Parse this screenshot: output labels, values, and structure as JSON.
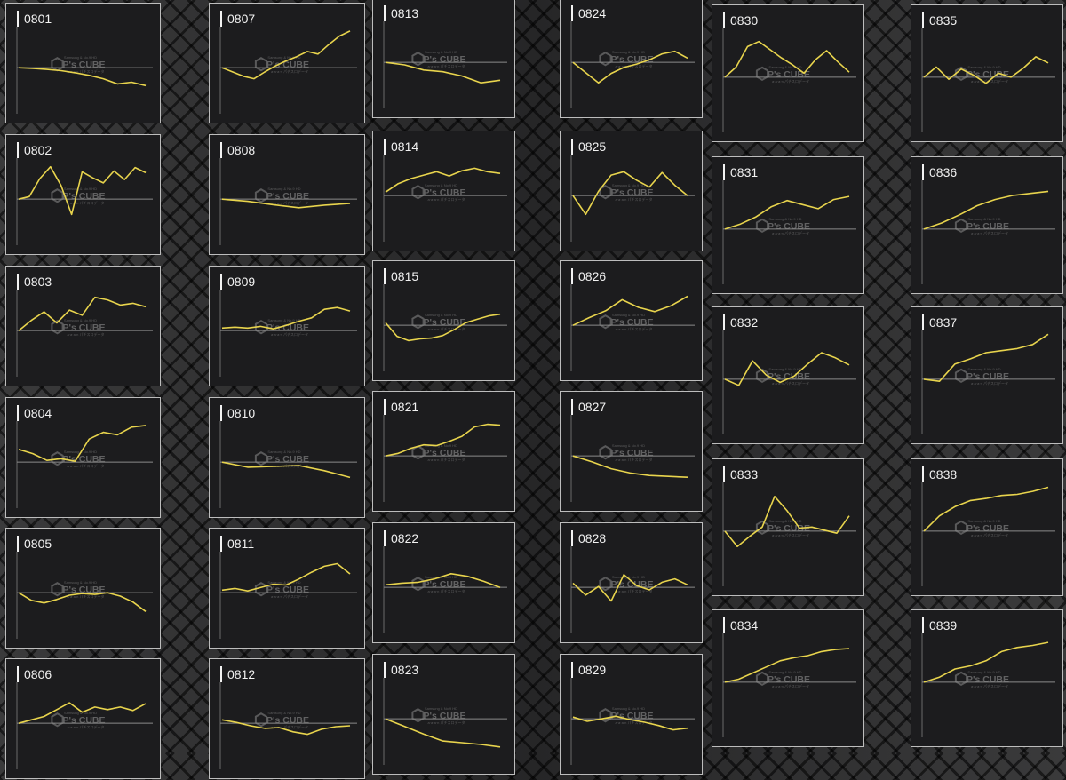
{
  "watermark": {
    "brand": "P's CUBE",
    "tag_top": "Samsung & No.9 HD",
    "tag_bottom": "a·a·a·n パチスロデータ"
  },
  "colors": {
    "line": "#e8d44d",
    "baseline": "#8a8a8a",
    "axis": "#6a6a6a",
    "panel_bg": "#1c1c1e",
    "panel_border": "#bdbdbd",
    "label": "#f2f2f2"
  },
  "chart_data": [
    {
      "type": "line",
      "id": "0801",
      "y": [
        0,
        -0.08,
        -0.2,
        -0.35,
        -0.6,
        -0.9,
        -1.3,
        -1.9,
        -1.7,
        -2.1
      ],
      "ylim": [
        -5,
        5
      ]
    },
    {
      "type": "line",
      "id": "0802",
      "y": [
        0,
        0.3,
        2.4,
        3.8,
        1.6,
        -1.8,
        3.2,
        2.5,
        1.9,
        3.3,
        2.3,
        3.7,
        3.1
      ],
      "ylim": [
        -5,
        5
      ]
    },
    {
      "type": "line",
      "id": "0803",
      "y": [
        0,
        1.2,
        2.2,
        0.9,
        2.4,
        1.8,
        3.9,
        3.6,
        3.0,
        3.2,
        2.8
      ],
      "ylim": [
        -5,
        5
      ]
    },
    {
      "type": "line",
      "id": "0804",
      "y": [
        1.5,
        1.0,
        0.2,
        0.4,
        0.1,
        2.7,
        3.5,
        3.2,
        4.1,
        4.3
      ],
      "ylim": [
        -5,
        5
      ]
    },
    {
      "type": "line",
      "id": "0805",
      "y": [
        0,
        -0.9,
        -1.2,
        -0.8,
        -0.3,
        -0.1,
        -0.2,
        0,
        -0.4,
        -1.1,
        -2.2
      ],
      "ylim": [
        -5,
        5
      ]
    },
    {
      "type": "line",
      "id": "0806",
      "y": [
        0,
        0.4,
        0.8,
        1.6,
        2.4,
        1.3,
        1.9,
        1.6,
        1.9,
        1.5,
        2.3
      ],
      "ylim": [
        -5,
        5
      ]
    },
    {
      "type": "line",
      "id": "0807",
      "y": [
        0,
        -0.5,
        -1.0,
        -1.3,
        -0.5,
        0.2,
        0.8,
        1.3,
        1.9,
        1.6,
        2.7,
        3.7,
        4.3
      ],
      "ylim": [
        -5,
        5
      ]
    },
    {
      "type": "line",
      "id": "0808",
      "y": [
        0,
        -0.25,
        -0.65,
        -1.0,
        -0.7,
        -0.5
      ],
      "ylim": [
        -5,
        5
      ]
    },
    {
      "type": "line",
      "id": "0809",
      "y": [
        0.3,
        0.4,
        0.3,
        0.5,
        0.2,
        0.6,
        1.1,
        1.5,
        2.5,
        2.7,
        2.3
      ],
      "ylim": [
        -5,
        5
      ]
    },
    {
      "type": "line",
      "id": "0810",
      "y": [
        0,
        -0.6,
        -0.5,
        -0.4,
        -1.0,
        -1.8
      ],
      "ylim": [
        -5,
        5
      ]
    },
    {
      "type": "line",
      "id": "0811",
      "y": [
        0.3,
        0.5,
        0.2,
        0.6,
        1.0,
        0.9,
        1.6,
        2.4,
        3.1,
        3.4,
        2.2
      ],
      "ylim": [
        -5,
        5
      ]
    },
    {
      "type": "line",
      "id": "0812",
      "y": [
        0.4,
        0.1,
        -0.3,
        -0.6,
        -0.5,
        -1.0,
        -1.3,
        -0.7,
        -0.4,
        -0.3
      ],
      "ylim": [
        -5,
        5
      ]
    },
    {
      "type": "line",
      "id": "0813",
      "y": [
        0,
        -0.3,
        -0.9,
        -1.1,
        -1.6,
        -2.4,
        -2.1
      ],
      "ylim": [
        -5,
        5
      ]
    },
    {
      "type": "line",
      "id": "0814",
      "y": [
        0.4,
        1.4,
        2.0,
        2.4,
        2.8,
        2.3,
        2.9,
        3.2,
        2.8,
        2.6
      ],
      "ylim": [
        -5,
        5
      ]
    },
    {
      "type": "line",
      "id": "0815",
      "y": [
        0.3,
        -1.3,
        -1.8,
        -1.6,
        -1.5,
        -1.2,
        -0.5,
        0.3,
        0.7,
        1.1,
        1.3
      ],
      "ylim": [
        -5,
        5
      ]
    },
    {
      "type": "line",
      "id": "0821",
      "y": [
        0,
        0.3,
        0.9,
        1.3,
        1.2,
        1.7,
        2.3,
        3.4,
        3.7,
        3.6
      ],
      "ylim": [
        -5,
        5
      ]
    },
    {
      "type": "line",
      "id": "0822",
      "y": [
        0.3,
        0.5,
        0.6,
        1.0,
        1.6,
        1.3,
        0.7,
        0
      ],
      "ylim": [
        -5,
        5
      ]
    },
    {
      "type": "line",
      "id": "0823",
      "y": [
        0,
        -0.9,
        -1.8,
        -2.6,
        -2.8,
        -3.0,
        -3.3
      ],
      "ylim": [
        -5,
        5
      ]
    },
    {
      "type": "line",
      "id": "0824",
      "y": [
        0,
        -1.2,
        -2.4,
        -1.3,
        -0.6,
        -0.2,
        0.3,
        1.0,
        1.3,
        0.5
      ],
      "ylim": [
        -5,
        5
      ]
    },
    {
      "type": "line",
      "id": "0825",
      "y": [
        0,
        -2.2,
        0.5,
        2.4,
        2.8,
        1.8,
        1.0,
        2.7,
        1.2,
        0
      ],
      "ylim": [
        -5,
        5
      ]
    },
    {
      "type": "line",
      "id": "0826",
      "y": [
        0,
        0.9,
        1.7,
        3.0,
        2.1,
        1.6,
        2.3,
        3.4
      ],
      "ylim": [
        -5,
        5
      ]
    },
    {
      "type": "line",
      "id": "0827",
      "y": [
        0,
        -0.7,
        -1.5,
        -2.0,
        -2.3,
        -2.4,
        -2.5
      ],
      "ylim": [
        -5,
        5
      ]
    },
    {
      "type": "line",
      "id": "0828",
      "y": [
        0.5,
        -0.9,
        0.1,
        -1.6,
        1.5,
        0.2,
        -0.3,
        0.6,
        1.0,
        0.3
      ],
      "ylim": [
        -5,
        5
      ]
    },
    {
      "type": "line",
      "id": "0829",
      "y": [
        0.2,
        -0.3,
        0,
        0.3,
        -0.1,
        -0.4,
        -0.8,
        -1.3,
        -1.1
      ],
      "ylim": [
        -5,
        5
      ]
    },
    {
      "type": "line",
      "id": "0830",
      "y": [
        0,
        1.0,
        3.0,
        3.5,
        2.7,
        1.9,
        1.2,
        0.4,
        1.7,
        2.6,
        1.5,
        0.5
      ],
      "ylim": [
        -5,
        5
      ]
    },
    {
      "type": "line",
      "id": "0831",
      "y": [
        0,
        0.5,
        1.2,
        2.2,
        2.8,
        2.4,
        2.0,
        2.9,
        3.2
      ],
      "ylim": [
        -5,
        5
      ]
    },
    {
      "type": "line",
      "id": "0832",
      "y": [
        0,
        -0.6,
        1.8,
        0.4,
        -0.3,
        0.3,
        1.5,
        2.6,
        2.1,
        1.4
      ],
      "ylim": [
        -5,
        5
      ]
    },
    {
      "type": "line",
      "id": "0833",
      "y": [
        0,
        -1.5,
        -0.5,
        0.4,
        3.4,
        2.0,
        0.3,
        0.4,
        0.1,
        -0.2,
        1.5
      ],
      "ylim": [
        -5,
        5
      ]
    },
    {
      "type": "line",
      "id": "0834",
      "y": [
        0,
        0.3,
        0.9,
        1.5,
        2.1,
        2.4,
        2.6,
        3.0,
        3.2,
        3.3
      ],
      "ylim": [
        -5,
        5
      ]
    },
    {
      "type": "line",
      "id": "0835",
      "y": [
        0,
        1.0,
        -0.2,
        0.8,
        0.2,
        -0.6,
        0.4,
        0,
        0.9,
        2.0,
        1.4
      ],
      "ylim": [
        -5,
        5
      ]
    },
    {
      "type": "line",
      "id": "0836",
      "y": [
        0,
        0.6,
        1.4,
        2.3,
        2.9,
        3.3,
        3.5,
        3.7
      ],
      "ylim": [
        -5,
        5
      ]
    },
    {
      "type": "line",
      "id": "0837",
      "y": [
        0,
        -0.2,
        1.5,
        2.0,
        2.6,
        2.8,
        3.0,
        3.4,
        4.4
      ],
      "ylim": [
        -5,
        5
      ]
    },
    {
      "type": "line",
      "id": "0838",
      "y": [
        0,
        1.5,
        2.4,
        3.0,
        3.2,
        3.5,
        3.6,
        3.9,
        4.3
      ],
      "ylim": [
        -5,
        5
      ]
    },
    {
      "type": "line",
      "id": "0839",
      "y": [
        0,
        0.5,
        1.3,
        1.6,
        2.1,
        3.0,
        3.4,
        3.6,
        3.9
      ],
      "ylim": [
        -5,
        5
      ]
    }
  ]
}
